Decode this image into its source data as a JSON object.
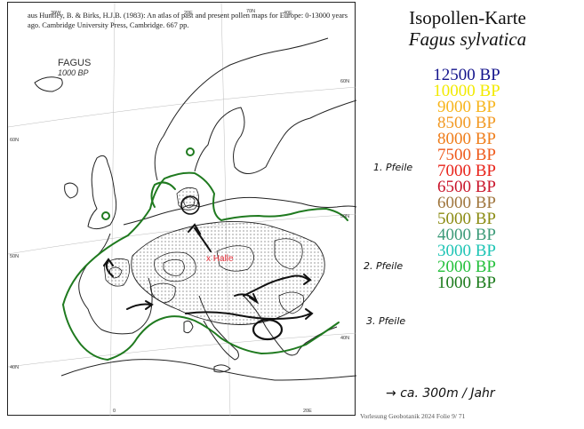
{
  "citation": "aus Huntley, B. & Birks, H.J.B. (1983): An atlas of past and present pollen maps for Europe: 0-13000 years ago. Cambridge University Press, Cambridge. 667 pp.",
  "map": {
    "title": "FAGUS",
    "subtitle": "1000 BP",
    "halle_label": "x Halle",
    "coords": {
      "top_30w": "30W",
      "top_20e": "20E",
      "top_70n": "70N",
      "top_40e": "40E",
      "left_60n": "60N",
      "left_50n": "50N",
      "left_40n": "40N",
      "right_60n": "60N",
      "right_50n": "50N",
      "right_40n": "40N",
      "bottom_0": "0",
      "bottom_20e": "20E"
    },
    "colors": {
      "forest_limit": "#1f7a1f",
      "contour": "#222222",
      "coast": "#222222",
      "halle": "#e8313c"
    }
  },
  "side": {
    "title": "Isopollen-Karte",
    "species": "Fagus sylvatica",
    "bp_items": [
      {
        "label": "12500 BP",
        "color": "#14148c"
      },
      {
        "label": "10000 BP",
        "color": "#f2ea00"
      },
      {
        "label": "9000 BP",
        "color": "#f7b51c"
      },
      {
        "label": "8500 BP",
        "color": "#f29a25"
      },
      {
        "label": "8000 BP",
        "color": "#ef7d1a"
      },
      {
        "label": "7500 BP",
        "color": "#ee5a1c"
      },
      {
        "label": "7000 BP",
        "color": "#e8231a"
      },
      {
        "label": "6500 BP",
        "color": "#c9152b"
      },
      {
        "label": "6000 BP",
        "color": "#a0763d"
      },
      {
        "label": "5000 BP",
        "color": "#8b8b12"
      },
      {
        "label": "4000 BP",
        "color": "#3c9a78"
      },
      {
        "label": "3000 BP",
        "color": "#1ec4b5"
      },
      {
        "label": "2000 BP",
        "color": "#23c03a"
      },
      {
        "label": "1000 BP",
        "color": "#1a7a1a"
      }
    ]
  },
  "notes": {
    "arrow1": "1. Pfeile",
    "arrow2": "2. Pfeile",
    "arrow3": "3. Pfeile",
    "rate": "ca. 300m / Jahr"
  },
  "footer": "Vorlesung Geobotanik 2024 Folie  9/ 71"
}
